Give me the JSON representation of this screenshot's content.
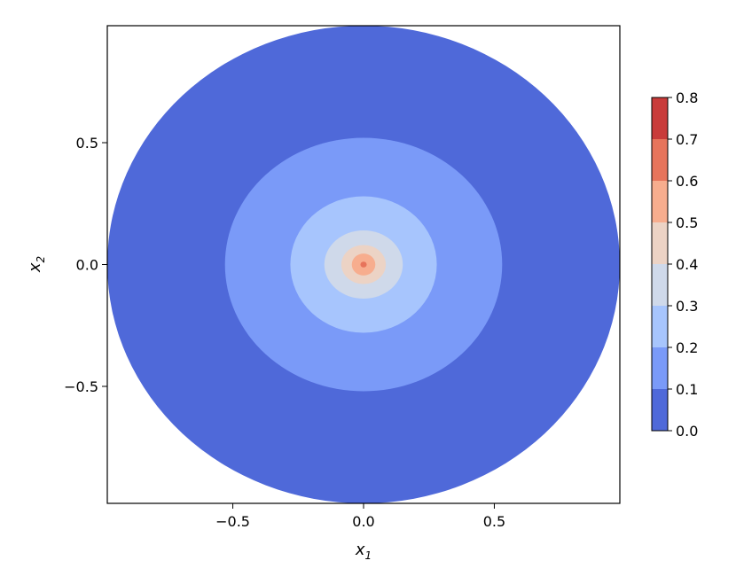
{
  "chart_data": {
    "type": "contourf",
    "xlabel": "x",
    "xlabel_subscript": "1",
    "ylabel": "x",
    "ylabel_subscript": "2",
    "xlim": [
      -0.98,
      0.98
    ],
    "ylim": [
      -0.98,
      0.98
    ],
    "x_ticks": [
      -0.5,
      0.0,
      0.5
    ],
    "x_tick_labels": [
      "−0.5",
      "0.0",
      "0.5"
    ],
    "y_ticks": [
      -0.5,
      0.0,
      0.5
    ],
    "y_tick_labels": [
      "−0.5",
      "0.0",
      "0.5"
    ],
    "domain": "unit disk",
    "colormap": "coolwarm",
    "levels": [
      0.0,
      0.1,
      0.2,
      0.3,
      0.4,
      0.5,
      0.6,
      0.7,
      0.8
    ],
    "colorbar_tick_labels": [
      "0.0",
      "0.1",
      "0.2",
      "0.3",
      "0.4",
      "0.5",
      "0.6",
      "0.7",
      "0.8"
    ],
    "level_colors": [
      "#4f69d9",
      "#7a9af8",
      "#a7c5fd",
      "#cfd9ea",
      "#ecd3c5",
      "#f7ad8e",
      "#e7745b",
      "#c93b3a"
    ],
    "contour_bands": [
      {
        "level_range": [
          0.0,
          0.1
        ],
        "radius_x": 0.98,
        "radius_y": 0.98
      },
      {
        "level_range": [
          0.1,
          0.2
        ],
        "radius_x": 0.53,
        "radius_y": 0.52
      },
      {
        "level_range": [
          0.2,
          0.3
        ],
        "radius_x": 0.28,
        "radius_y": 0.28
      },
      {
        "level_range": [
          0.3,
          0.4
        ],
        "radius_x": 0.15,
        "radius_y": 0.14
      },
      {
        "level_range": [
          0.4,
          0.5
        ],
        "radius_x": 0.085,
        "radius_y": 0.08
      },
      {
        "level_range": [
          0.5,
          0.6
        ],
        "radius_x": 0.045,
        "radius_y": 0.045
      },
      {
        "level_range": [
          0.6,
          0.7
        ],
        "radius_x": 0.012,
        "radius_y": 0.012
      }
    ]
  }
}
